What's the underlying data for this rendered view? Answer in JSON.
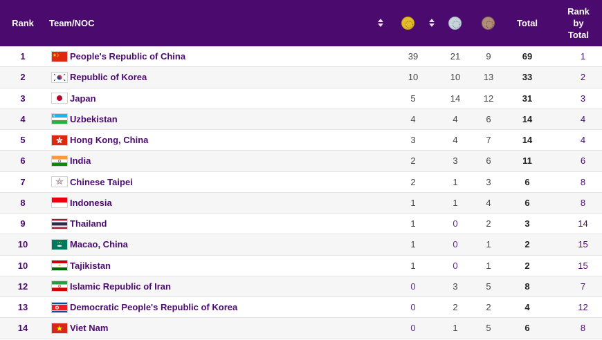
{
  "header": {
    "rank": "Rank",
    "team": "Team/NOC",
    "gold_icon": "gold-medal-icon",
    "silver_icon": "silver-medal-icon",
    "bronze_icon": "bronze-medal-icon",
    "total": "Total",
    "rank_by_total": [
      "Rank",
      "by",
      "Total"
    ]
  },
  "colors": {
    "header_bg": "#4b0a6e",
    "accent": "#4b0a6e",
    "gold": "#e2bc2a",
    "silver": "#c9d3dc",
    "bronze": "#b08c79"
  },
  "rows": [
    {
      "rank": "1",
      "flag": "china-flag-icon",
      "team": "People's Republic of China",
      "gold": "39",
      "silver": "21",
      "bronze": "9",
      "total": "69",
      "rank_by_total": "1"
    },
    {
      "rank": "2",
      "flag": "korea-flag-icon",
      "team": "Republic of Korea",
      "gold": "10",
      "silver": "10",
      "bronze": "13",
      "total": "33",
      "rank_by_total": "2"
    },
    {
      "rank": "3",
      "flag": "japan-flag-icon",
      "team": "Japan",
      "gold": "5",
      "silver": "14",
      "bronze": "12",
      "total": "31",
      "rank_by_total": "3"
    },
    {
      "rank": "4",
      "flag": "uzbekistan-flag-icon",
      "team": "Uzbekistan",
      "gold": "4",
      "silver": "4",
      "bronze": "6",
      "total": "14",
      "rank_by_total": "4"
    },
    {
      "rank": "5",
      "flag": "hong-kong-flag-icon",
      "team": "Hong Kong, China",
      "gold": "3",
      "silver": "4",
      "bronze": "7",
      "total": "14",
      "rank_by_total": "4"
    },
    {
      "rank": "6",
      "flag": "india-flag-icon",
      "team": "India",
      "gold": "2",
      "silver": "3",
      "bronze": "6",
      "total": "11",
      "rank_by_total": "6"
    },
    {
      "rank": "7",
      "flag": "chinese-taipei-flag-icon",
      "team": "Chinese Taipei",
      "gold": "2",
      "silver": "1",
      "bronze": "3",
      "total": "6",
      "rank_by_total": "8"
    },
    {
      "rank": "8",
      "flag": "indonesia-flag-icon",
      "team": "Indonesia",
      "gold": "1",
      "silver": "1",
      "bronze": "4",
      "total": "6",
      "rank_by_total": "8"
    },
    {
      "rank": "9",
      "flag": "thailand-flag-icon",
      "team": "Thailand",
      "gold": "1",
      "silver": "0",
      "bronze": "2",
      "total": "3",
      "rank_by_total": "14"
    },
    {
      "rank": "10",
      "flag": "macao-flag-icon",
      "team": "Macao, China",
      "gold": "1",
      "silver": "0",
      "bronze": "1",
      "total": "2",
      "rank_by_total": "15"
    },
    {
      "rank": "10",
      "flag": "tajikistan-flag-icon",
      "team": "Tajikistan",
      "gold": "1",
      "silver": "0",
      "bronze": "1",
      "total": "2",
      "rank_by_total": "15"
    },
    {
      "rank": "12",
      "flag": "iran-flag-icon",
      "team": "Islamic Republic of Iran",
      "gold": "0",
      "silver": "3",
      "bronze": "5",
      "total": "8",
      "rank_by_total": "7"
    },
    {
      "rank": "13",
      "flag": "dpr-korea-flag-icon",
      "team": "Democratic People's Republic of Korea",
      "gold": "0",
      "silver": "2",
      "bronze": "2",
      "total": "4",
      "rank_by_total": "12"
    },
    {
      "rank": "14",
      "flag": "viet-nam-flag-icon",
      "team": "Viet Nam",
      "gold": "0",
      "silver": "1",
      "bronze": "5",
      "total": "6",
      "rank_by_total": "8"
    }
  ]
}
